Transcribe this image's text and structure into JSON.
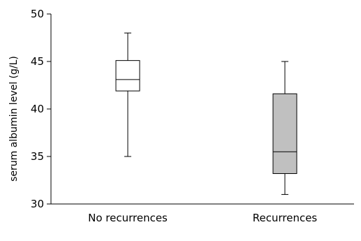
{
  "chart_data": {
    "type": "box",
    "ylabel": "serum albumin level (g/L)",
    "xlabel": "",
    "ylim": [
      30,
      50
    ],
    "yticks": [
      30,
      35,
      40,
      45,
      50
    ],
    "categories": [
      "No recurrences",
      "Recurrences"
    ],
    "boxes": [
      {
        "category": "No recurrences",
        "min": 35,
        "q1": 41.9,
        "median": 43.1,
        "q3": 45.1,
        "max": 48,
        "fill": "#ffffff"
      },
      {
        "category": "Recurrences",
        "min": 31,
        "q1": 33.2,
        "median": 35.5,
        "q3": 41.6,
        "max": 45,
        "fill": "#c0c0c0"
      }
    ],
    "grid": false,
    "colors": {
      "axis": "#000000",
      "box_stroke": "#000000"
    }
  }
}
